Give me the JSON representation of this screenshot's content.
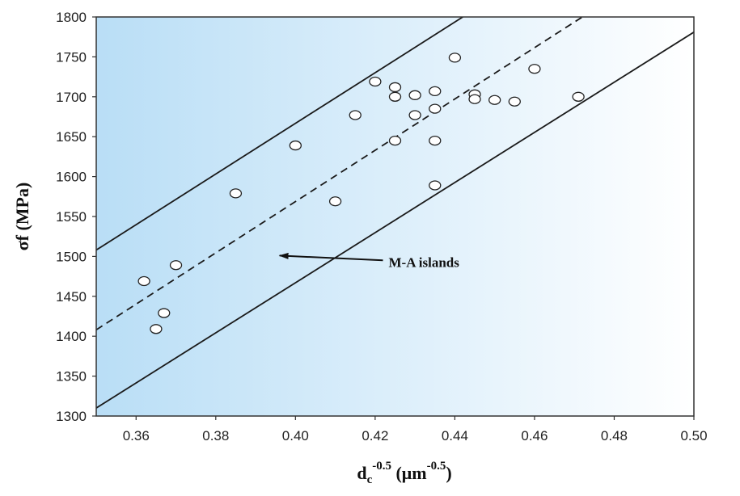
{
  "chart_data": {
    "type": "scatter",
    "title": "",
    "xlabel": {
      "base": "d",
      "sub": "c",
      "sup": "-0.5",
      "unit_prefix": " (μm",
      "unit_sup": "-0.5",
      "unit_suffix": ")"
    },
    "ylabel": "σf (MPa)",
    "xlim": [
      0.35,
      0.5
    ],
    "ylim": [
      1300,
      1800
    ],
    "xticks": [
      "0.36",
      "0.38",
      "0.40",
      "0.42",
      "0.44",
      "0.46",
      "0.48",
      "0.50"
    ],
    "yticks": [
      "1300",
      "1350",
      "1400",
      "1450",
      "1500",
      "1550",
      "1600",
      "1650",
      "1700",
      "1750",
      "1800"
    ],
    "grid": false,
    "background_gradient": [
      "#b9def6",
      "#ffffff"
    ],
    "points": [
      {
        "x": 0.362,
        "y": 1469
      },
      {
        "x": 0.365,
        "y": 1409
      },
      {
        "x": 0.367,
        "y": 1429
      },
      {
        "x": 0.37,
        "y": 1489
      },
      {
        "x": 0.385,
        "y": 1579
      },
      {
        "x": 0.4,
        "y": 1639
      },
      {
        "x": 0.41,
        "y": 1569
      },
      {
        "x": 0.415,
        "y": 1677
      },
      {
        "x": 0.42,
        "y": 1719
      },
      {
        "x": 0.425,
        "y": 1712
      },
      {
        "x": 0.425,
        "y": 1700
      },
      {
        "x": 0.425,
        "y": 1645
      },
      {
        "x": 0.43,
        "y": 1702
      },
      {
        "x": 0.43,
        "y": 1677
      },
      {
        "x": 0.435,
        "y": 1707
      },
      {
        "x": 0.435,
        "y": 1685
      },
      {
        "x": 0.435,
        "y": 1645
      },
      {
        "x": 0.435,
        "y": 1589
      },
      {
        "x": 0.44,
        "y": 1749
      },
      {
        "x": 0.445,
        "y": 1703
      },
      {
        "x": 0.445,
        "y": 1697
      },
      {
        "x": 0.45,
        "y": 1696
      },
      {
        "x": 0.455,
        "y": 1694
      },
      {
        "x": 0.46,
        "y": 1735
      },
      {
        "x": 0.471,
        "y": 1700
      }
    ],
    "lines": [
      {
        "name": "upper-bound",
        "style": "solid",
        "x": [
          0.35,
          0.442
        ],
        "y": [
          1508,
          1800
        ]
      },
      {
        "name": "fit",
        "style": "dashed",
        "x": [
          0.35,
          0.472
        ],
        "y": [
          1408,
          1800
        ]
      },
      {
        "name": "lower-bound",
        "style": "solid",
        "x": [
          0.35,
          0.5
        ],
        "y": [
          1310,
          1781
        ]
      }
    ],
    "annotations": [
      {
        "text": "M-A islands",
        "x": 0.425,
        "y": 1492,
        "arrow_to": {
          "x": 0.396,
          "y": 1501
        }
      }
    ]
  }
}
